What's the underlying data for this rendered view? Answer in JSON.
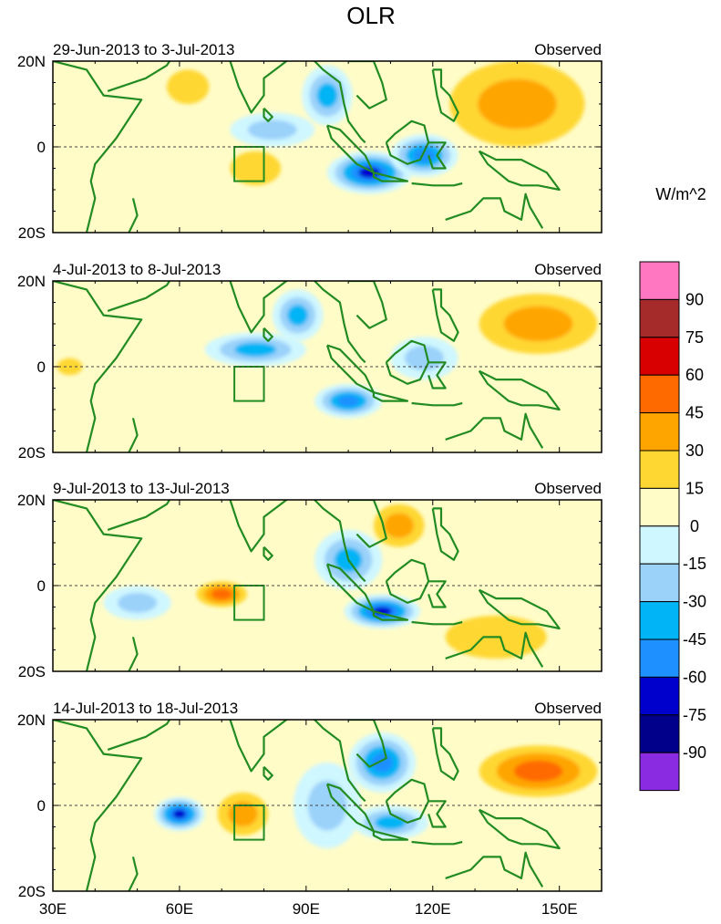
{
  "chart_data": {
    "type": "heatmap",
    "title": "OLR",
    "units": "W/m^2",
    "x_ticks": [
      "30E",
      "60E",
      "90E",
      "120E",
      "150E"
    ],
    "xlim": [
      30,
      160
    ],
    "ylim": [
      -20,
      20
    ],
    "y_ticks": [
      "20N",
      "0",
      "20S"
    ],
    "legend_levels": [
      "90",
      "75",
      "60",
      "45",
      "30",
      "15",
      "0",
      "-15",
      "-30",
      "-45",
      "-60",
      "-75",
      "-90"
    ],
    "legend_colors": [
      "#ff77c0",
      "#a52a2a",
      "#d80000",
      "#ff6a00",
      "#ffa500",
      "#ffd732",
      "#fffcc8",
      "#cff7ff",
      "#9bd2fa",
      "#00b4f5",
      "#1e90ff",
      "#0000cd",
      "#00008b",
      "#8a2be2"
    ],
    "colors": {
      "land": "#228b22",
      "equator": "#444444",
      "background": "#fffcc8"
    },
    "panels": [
      {
        "period": "29-Jun-2013 to 3-Jul-2013",
        "label": "Observed",
        "anomalies": [
          {
            "lon": 105,
            "lat": -6,
            "rx": 10,
            "ry": 5,
            "value": -75
          },
          {
            "lon": 118,
            "lat": -2,
            "rx": 8,
            "ry": 5,
            "value": -60
          },
          {
            "lon": 95,
            "lat": 12,
            "rx": 6,
            "ry": 7,
            "value": -45
          },
          {
            "lon": 82,
            "lat": 4,
            "rx": 10,
            "ry": 4,
            "value": -30
          },
          {
            "lon": 140,
            "lat": 10,
            "rx": 16,
            "ry": 10,
            "value": 30
          },
          {
            "lon": 62,
            "lat": 14,
            "rx": 5,
            "ry": 4,
            "value": 15
          },
          {
            "lon": 78,
            "lat": -5,
            "rx": 6,
            "ry": 4,
            "value": 15
          }
        ]
      },
      {
        "period": "4-Jul-2013 to 8-Jul-2013",
        "label": "Observed",
        "anomalies": [
          {
            "lon": 100,
            "lat": -8,
            "rx": 8,
            "ry": 4,
            "value": -60
          },
          {
            "lon": 88,
            "lat": 12,
            "rx": 6,
            "ry": 6,
            "value": -45
          },
          {
            "lon": 78,
            "lat": 4,
            "rx": 12,
            "ry": 4,
            "value": -45
          },
          {
            "lon": 118,
            "lat": 2,
            "rx": 8,
            "ry": 5,
            "value": -30
          },
          {
            "lon": 145,
            "lat": 10,
            "rx": 14,
            "ry": 7,
            "value": 30
          },
          {
            "lon": 34,
            "lat": 0,
            "rx": 3,
            "ry": 2,
            "value": 15
          }
        ]
      },
      {
        "period": "9-Jul-2013 to 13-Jul-2013",
        "label": "Observed",
        "anomalies": [
          {
            "lon": 108,
            "lat": -6,
            "rx": 9,
            "ry": 4,
            "value": -75
          },
          {
            "lon": 100,
            "lat": 6,
            "rx": 8,
            "ry": 7,
            "value": -45
          },
          {
            "lon": 50,
            "lat": -4,
            "rx": 8,
            "ry": 4,
            "value": -30
          },
          {
            "lon": 70,
            "lat": -2,
            "rx": 6,
            "ry": 3,
            "value": 45
          },
          {
            "lon": 112,
            "lat": 14,
            "rx": 6,
            "ry": 5,
            "value": 30
          },
          {
            "lon": 135,
            "lat": -12,
            "rx": 12,
            "ry": 5,
            "value": 15
          }
        ]
      },
      {
        "period": "14-Jul-2013 to 18-Jul-2013",
        "label": "Observed",
        "anomalies": [
          {
            "lon": 60,
            "lat": -2,
            "rx": 6,
            "ry": 4,
            "value": -75
          },
          {
            "lon": 108,
            "lat": 10,
            "rx": 8,
            "ry": 7,
            "value": -60
          },
          {
            "lon": 110,
            "lat": -4,
            "rx": 9,
            "ry": 4,
            "value": -45
          },
          {
            "lon": 95,
            "lat": 0,
            "rx": 8,
            "ry": 10,
            "value": -30
          },
          {
            "lon": 75,
            "lat": -2,
            "rx": 6,
            "ry": 5,
            "value": 30
          },
          {
            "lon": 145,
            "lat": 8,
            "rx": 14,
            "ry": 6,
            "value": 45
          }
        ]
      }
    ]
  }
}
